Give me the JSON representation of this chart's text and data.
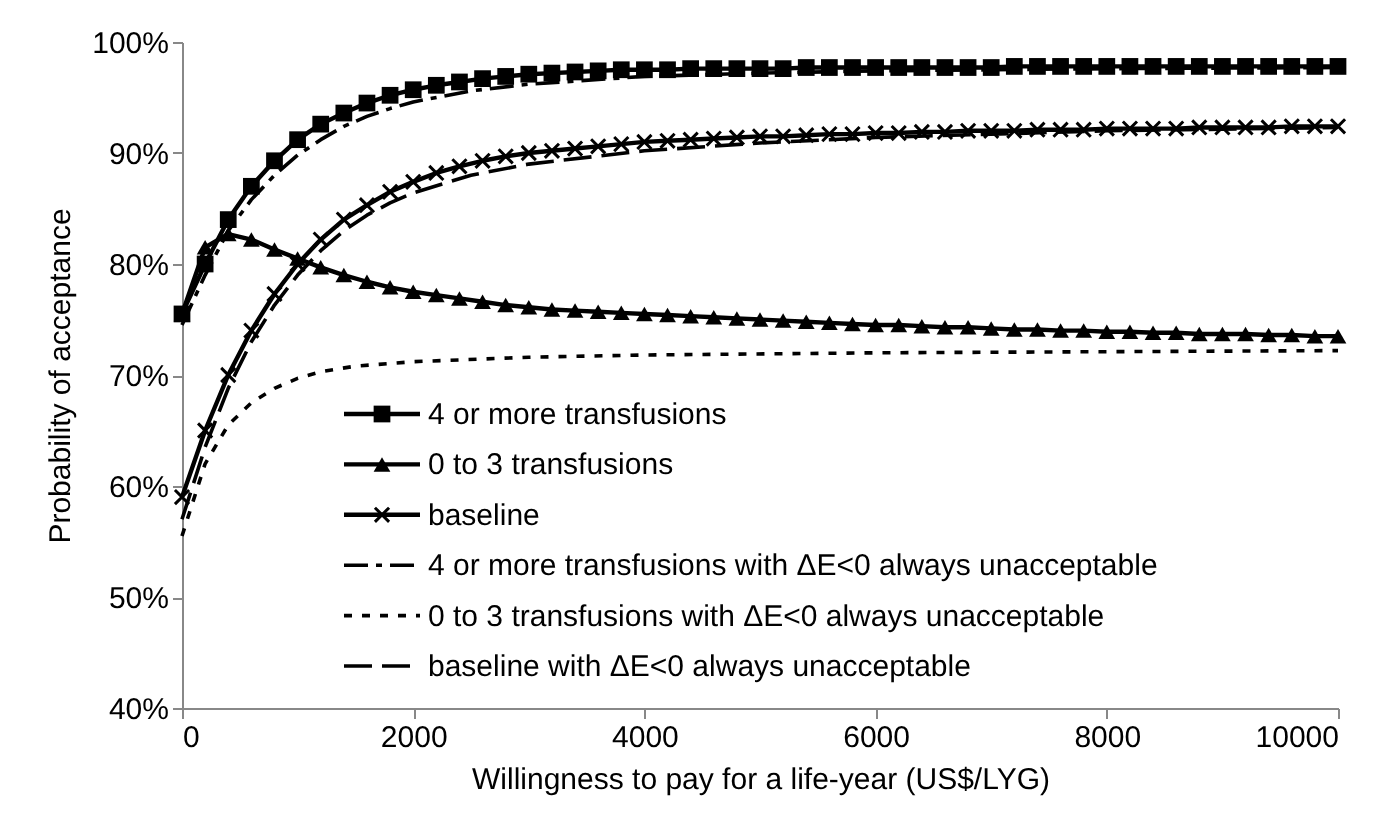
{
  "chart_data": {
    "type": "line",
    "xlabel": "Willingness to pay for a life-year (US$/LYG)",
    "ylabel": "Probability of acceptance",
    "xlim": [
      0,
      10000
    ],
    "xticks": [
      0,
      2000,
      4000,
      6000,
      8000,
      10000
    ],
    "ylim": [
      40,
      100
    ],
    "yticks": [
      {
        "value": 40,
        "label": "40%"
      },
      {
        "value": 50,
        "label": "50%"
      },
      {
        "value": 60,
        "label": "60%"
      },
      {
        "value": 70,
        "label": "70%"
      },
      {
        "value": 80,
        "label": "80%"
      },
      {
        "value": 90,
        "label": "90%"
      },
      {
        "value": 100,
        "label": "100%"
      }
    ],
    "grid": false,
    "legend": "bottom",
    "series": [
      {
        "name": "4 or more transfusions",
        "color": "#000000",
        "marker": "square",
        "line_style": "solid",
        "x": [
          0,
          200,
          400,
          600,
          800,
          1000,
          1200,
          1400,
          1600,
          1800,
          2000,
          2200,
          2400,
          2600,
          2800,
          3000,
          3200,
          3400,
          3600,
          3800,
          4000,
          4200,
          4400,
          4600,
          4800,
          5000,
          5200,
          5400,
          5600,
          5800,
          6000,
          6200,
          6400,
          6600,
          6800,
          7000,
          7200,
          7400,
          7600,
          7800,
          8000,
          8200,
          8400,
          8600,
          8800,
          9000,
          9200,
          9400,
          9600,
          9800,
          10000
        ],
        "values": [
          75.5,
          80,
          84,
          87,
          89.3,
          91.2,
          92.6,
          93.6,
          94.5,
          95.2,
          95.7,
          96.1,
          96.4,
          96.7,
          96.9,
          97.1,
          97.2,
          97.3,
          97.4,
          97.5,
          97.5,
          97.5,
          97.6,
          97.6,
          97.6,
          97.6,
          97.6,
          97.7,
          97.7,
          97.7,
          97.7,
          97.7,
          97.7,
          97.7,
          97.7,
          97.7,
          97.8,
          97.8,
          97.8,
          97.8,
          97.8,
          97.8,
          97.8,
          97.8,
          97.8,
          97.8,
          97.8,
          97.8,
          97.8,
          97.8,
          97.8
        ]
      },
      {
        "name": "0 to 3 transfusions",
        "color": "#000000",
        "marker": "triangle",
        "line_style": "solid",
        "x": [
          0,
          200,
          400,
          600,
          800,
          1000,
          1200,
          1400,
          1600,
          1800,
          2000,
          2200,
          2400,
          2600,
          2800,
          3000,
          3200,
          3400,
          3600,
          3800,
          4000,
          4200,
          4400,
          4600,
          4800,
          5000,
          5200,
          5400,
          5600,
          5800,
          6000,
          6200,
          6400,
          6600,
          6800,
          7000,
          7200,
          7400,
          7600,
          7800,
          8000,
          8200,
          8400,
          8600,
          8800,
          9000,
          9200,
          9400,
          9600,
          9800,
          10000
        ],
        "values": [
          75.5,
          81.5,
          82.7,
          82.2,
          81.3,
          80.5,
          79.7,
          79.0,
          78.4,
          77.9,
          77.5,
          77.2,
          76.9,
          76.6,
          76.3,
          76.1,
          75.9,
          75.8,
          75.7,
          75.6,
          75.5,
          75.4,
          75.3,
          75.2,
          75.1,
          75.0,
          74.9,
          74.8,
          74.7,
          74.6,
          74.5,
          74.5,
          74.4,
          74.3,
          74.3,
          74.2,
          74.1,
          74.1,
          74.0,
          74.0,
          73.9,
          73.9,
          73.8,
          73.8,
          73.7,
          73.7,
          73.7,
          73.6,
          73.6,
          73.5,
          73.5
        ]
      },
      {
        "name": "baseline",
        "color": "#000000",
        "marker": "cross",
        "line_style": "solid",
        "x": [
          0,
          200,
          400,
          600,
          800,
          1000,
          1200,
          1400,
          1600,
          1800,
          2000,
          2200,
          2400,
          2600,
          2800,
          3000,
          3200,
          3400,
          3600,
          3800,
          4000,
          4200,
          4400,
          4600,
          4800,
          5000,
          5200,
          5400,
          5600,
          5800,
          6000,
          6200,
          6400,
          6600,
          6800,
          7000,
          7200,
          7400,
          7600,
          7800,
          8000,
          8200,
          8400,
          8600,
          8800,
          9000,
          9200,
          9400,
          9600,
          9800,
          10000
        ],
        "values": [
          59,
          65,
          70,
          74,
          77.3,
          80,
          82.2,
          84,
          85.3,
          86.5,
          87.4,
          88.2,
          88.8,
          89.3,
          89.7,
          90,
          90.2,
          90.4,
          90.6,
          90.8,
          91,
          91.1,
          91.2,
          91.3,
          91.4,
          91.5,
          91.5,
          91.6,
          91.7,
          91.7,
          91.8,
          91.8,
          91.9,
          91.9,
          92,
          92,
          92,
          92.1,
          92.1,
          92.1,
          92.2,
          92.2,
          92.2,
          92.2,
          92.3,
          92.3,
          92.3,
          92.3,
          92.4,
          92.4,
          92.4
        ]
      },
      {
        "name": "4 or more transfusions with ΔE<0 always unacceptable",
        "color": "#000000",
        "marker": "none",
        "line_style": "dashdot",
        "x": [
          0,
          200,
          400,
          600,
          800,
          1000,
          1200,
          1400,
          1600,
          1800,
          2000,
          2500,
          3000,
          4000,
          5000,
          6000,
          8000,
          10000
        ],
        "values": [
          74.5,
          79,
          83,
          85.8,
          88,
          89.8,
          91.2,
          92.4,
          93.3,
          94,
          94.6,
          95.6,
          96.2,
          96.9,
          97.2,
          97.4,
          97.6,
          97.7
        ]
      },
      {
        "name": "0 to 3 transfusions with ΔE<0 always unacceptable",
        "color": "#000000",
        "marker": "none",
        "line_style": "dotted",
        "x": [
          0,
          200,
          400,
          600,
          800,
          1000,
          1200,
          1500,
          2000,
          3000,
          4000,
          6000,
          8000,
          10000
        ],
        "values": [
          55.5,
          62,
          65.5,
          67.5,
          68.8,
          69.7,
          70.3,
          70.8,
          71.2,
          71.6,
          71.8,
          72,
          72.1,
          72.2
        ]
      },
      {
        "name": "baseline with ΔE<0 always unacceptable",
        "color": "#000000",
        "marker": "none",
        "line_style": "dashed",
        "x": [
          0,
          200,
          400,
          600,
          800,
          1000,
          1200,
          1400,
          1600,
          1800,
          2000,
          2500,
          3000,
          4000,
          5000,
          6000,
          7000,
          8000,
          10000
        ],
        "values": [
          57,
          63.5,
          68.8,
          73,
          76.3,
          79,
          81.2,
          83,
          84.4,
          85.5,
          86.4,
          88,
          89,
          90.2,
          90.9,
          91.4,
          91.7,
          92,
          92.3
        ]
      }
    ]
  }
}
